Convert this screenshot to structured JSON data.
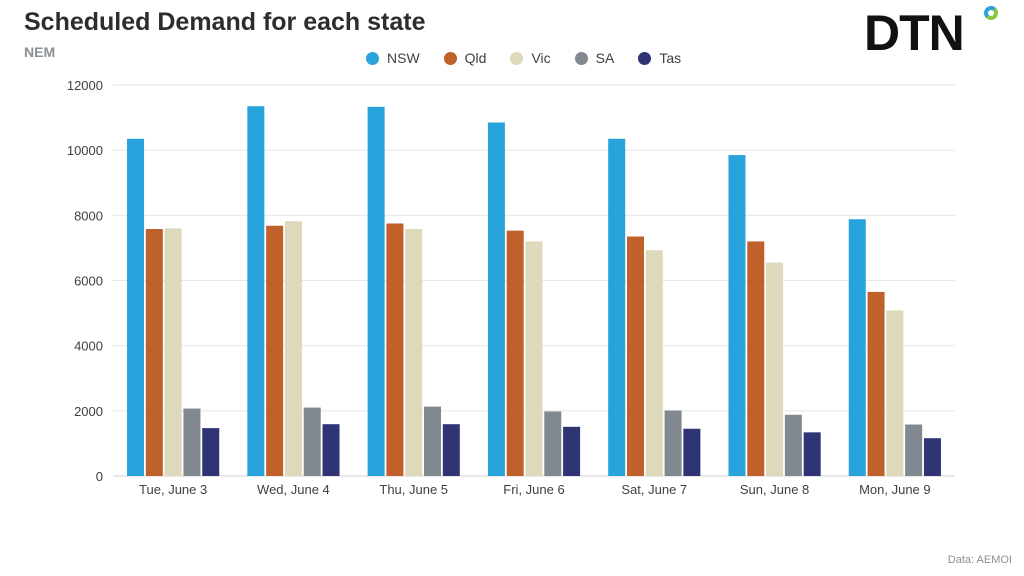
{
  "header": {
    "title": "Scheduled Demand for each state",
    "subtitle": "NEM",
    "logo_text": "DTN"
  },
  "footer": {
    "source": "Data: AEMOI"
  },
  "chart_data": {
    "type": "bar",
    "categories": [
      "Tue, June 3",
      "Wed, June 4",
      "Thu, June 5",
      "Fri, June 6",
      "Sat, June 7",
      "Sun, June 8",
      "Mon, June 9"
    ],
    "series": [
      {
        "name": "NSW",
        "color": "#29a3db",
        "values": [
          10350,
          11350,
          11330,
          10850,
          10350,
          9850,
          7880
        ]
      },
      {
        "name": "Qld",
        "color": "#c0602a",
        "values": [
          7580,
          7680,
          7750,
          7530,
          7350,
          7200,
          5650
        ]
      },
      {
        "name": "Vic",
        "color": "#ddd9ba",
        "values": [
          7600,
          7820,
          7580,
          7200,
          6930,
          6550,
          5080
        ]
      },
      {
        "name": "SA",
        "color": "#818890",
        "values": [
          2070,
          2100,
          2130,
          1980,
          2010,
          1880,
          1580
        ]
      },
      {
        "name": "Tas",
        "color": "#2f3475",
        "values": [
          1470,
          1590,
          1590,
          1510,
          1450,
          1340,
          1160
        ]
      }
    ],
    "xlabel": "",
    "ylabel": "",
    "ylim": [
      0,
      12000
    ],
    "yticks": [
      0,
      2000,
      4000,
      6000,
      8000,
      10000,
      12000
    ],
    "grid": true,
    "legend_position": "top-center"
  }
}
